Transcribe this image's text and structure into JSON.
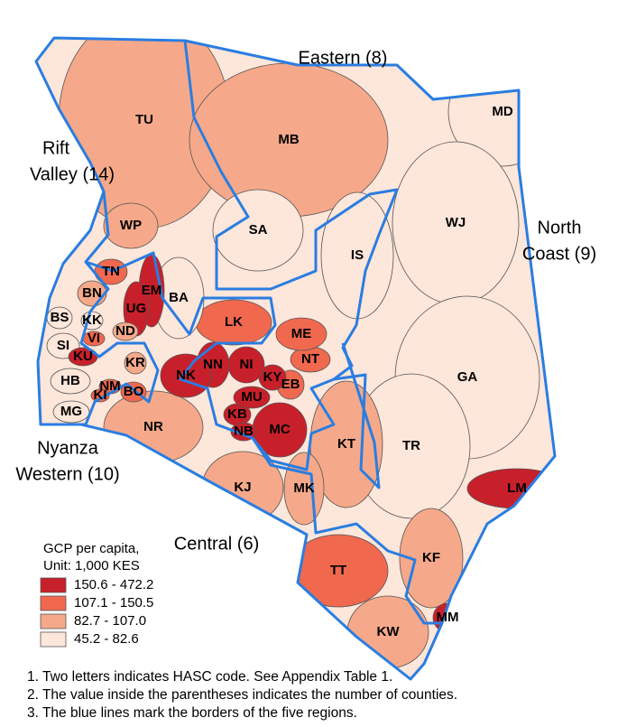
{
  "map": {
    "regions": [
      {
        "lines": [
          "Eastern (8)"
        ]
      },
      {
        "lines": [
          "Rift",
          "Valley (14)"
        ]
      },
      {
        "lines": [
          "North",
          "Coast (9)"
        ]
      },
      {
        "lines": [
          "Nyanza",
          "Western (10)"
        ]
      },
      {
        "lines": [
          "Central (6)"
        ]
      }
    ],
    "counties": [
      {
        "code": "TU",
        "class": 2
      },
      {
        "code": "MB",
        "class": 2
      },
      {
        "code": "MD",
        "class": 3
      },
      {
        "code": "WJ",
        "class": 3
      },
      {
        "code": "SA",
        "class": 3
      },
      {
        "code": "IS",
        "class": 3
      },
      {
        "code": "GA",
        "class": 3
      },
      {
        "code": "TR",
        "class": 3
      },
      {
        "code": "LM",
        "class": 0
      },
      {
        "code": "KF",
        "class": 2
      },
      {
        "code": "MM",
        "class": 0
      },
      {
        "code": "TT",
        "class": 1
      },
      {
        "code": "KW",
        "class": 2
      },
      {
        "code": "KT",
        "class": 2
      },
      {
        "code": "MK",
        "class": 2
      },
      {
        "code": "KJ",
        "class": 2
      },
      {
        "code": "NR",
        "class": 2
      },
      {
        "code": "MC",
        "class": 0
      },
      {
        "code": "KB",
        "class": 0
      },
      {
        "code": "NB",
        "class": 0
      },
      {
        "code": "MU",
        "class": 0
      },
      {
        "code": "EB",
        "class": 1
      },
      {
        "code": "KY",
        "class": 0
      },
      {
        "code": "NT",
        "class": 1
      },
      {
        "code": "ME",
        "class": 1
      },
      {
        "code": "LK",
        "class": 1
      },
      {
        "code": "NI",
        "class": 0
      },
      {
        "code": "NN",
        "class": 0
      },
      {
        "code": "NK",
        "class": 0
      },
      {
        "code": "BA",
        "class": 3
      },
      {
        "code": "EM",
        "class": 0
      },
      {
        "code": "UG",
        "class": 0
      },
      {
        "code": "TN",
        "class": 1
      },
      {
        "code": "WP",
        "class": 2
      },
      {
        "code": "BN",
        "class": 2
      },
      {
        "code": "KK",
        "class": 3
      },
      {
        "code": "BS",
        "class": 3
      },
      {
        "code": "SI",
        "class": 3
      },
      {
        "code": "VI",
        "class": 1
      },
      {
        "code": "ND",
        "class": 2
      },
      {
        "code": "KU",
        "class": 0
      },
      {
        "code": "KR",
        "class": 2
      },
      {
        "code": "HB",
        "class": 3
      },
      {
        "code": "NM",
        "class": 1
      },
      {
        "code": "KI",
        "class": 1
      },
      {
        "code": "BO",
        "class": 1
      },
      {
        "code": "MG",
        "class": 3
      }
    ],
    "legend": {
      "title": [
        "GCP per capita,",
        "Unit: 1,000 KES"
      ],
      "classes": [
        {
          "label": "150.6 - 472.2",
          "color": "#c8202a"
        },
        {
          "label": "107.1 - 150.5",
          "color": "#f0694f"
        },
        {
          "label": "82.7 - 107.0",
          "color": "#f5a98a"
        },
        {
          "label": "45.2 - 82.6",
          "color": "#fde6da"
        }
      ]
    },
    "notes": [
      "1. Two letters indicates HASC code. See Appendix Table 1.",
      "2. The value inside the parentheses indicates the number of counties.",
      "3. The blue lines mark the borders of the five regions."
    ]
  }
}
